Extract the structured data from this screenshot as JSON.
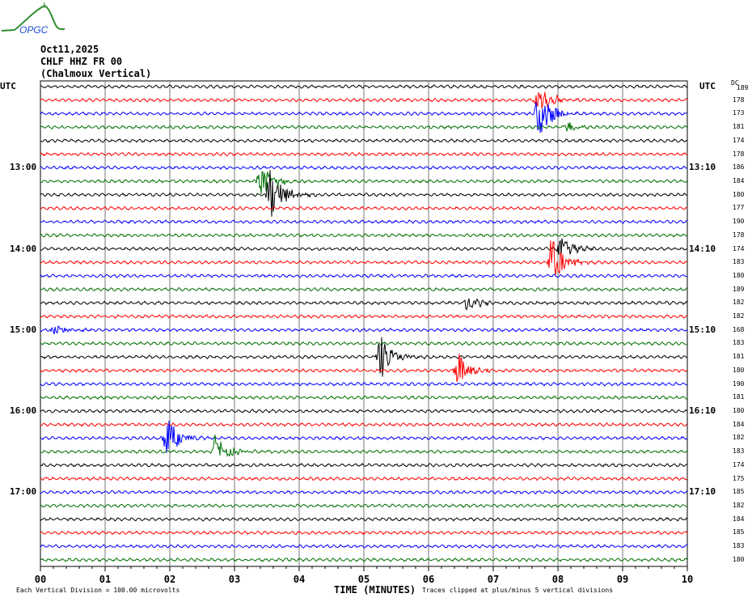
{
  "logo": {
    "text": "OPGC",
    "colors": {
      "curve": "#2e8b2e",
      "text": "#1a4fd0"
    }
  },
  "header": {
    "date": "Oct11,2025",
    "station": "CHLF HHZ FR 00",
    "name": "(Chalmoux Vertical)"
  },
  "chart_data": {
    "type": "line",
    "title": "",
    "left_axis_title": "UTC",
    "right_axis_title": "UTC",
    "dc_title": "DC",
    "xlabel": "TIME (MINUTES)",
    "xlim": [
      0,
      10
    ],
    "x_ticks": [
      "00",
      "01",
      "02",
      "03",
      "04",
      "05",
      "06",
      "07",
      "08",
      "09",
      "10"
    ],
    "trace_colors": [
      "#000000",
      "#ff0000",
      "#0000ff",
      "#007000"
    ],
    "trace_count": 36,
    "minutes_per_trace": 10,
    "left_labels": [
      {
        "trace": 6,
        "text": "13:00"
      },
      {
        "trace": 12,
        "text": "14:00"
      },
      {
        "trace": 18,
        "text": "15:00"
      },
      {
        "trace": 24,
        "text": "16:00"
      },
      {
        "trace": 30,
        "text": "17:00"
      }
    ],
    "right_labels": [
      {
        "trace": 6,
        "text": "13:10"
      },
      {
        "trace": 12,
        "text": "14:10"
      },
      {
        "trace": 18,
        "text": "15:10"
      },
      {
        "trace": 24,
        "text": "16:10"
      },
      {
        "trace": 30,
        "text": "17:10"
      }
    ],
    "dc_values": [
      189,
      178,
      173,
      181,
      174,
      178,
      186,
      184,
      180,
      177,
      190,
      178,
      174,
      183,
      180,
      189,
      182,
      182,
      168,
      183,
      181,
      180,
      190,
      181,
      180,
      184,
      182,
      183,
      174,
      175,
      185,
      182,
      184,
      185,
      183,
      180
    ],
    "events": [
      {
        "trace": 1,
        "minute": 7.7,
        "amplitude": 1.2
      },
      {
        "trace": 2,
        "minute": 7.7,
        "amplitude": 2.0
      },
      {
        "trace": 3,
        "minute": 8.15,
        "amplitude": 0.35
      },
      {
        "trace": 7,
        "minute": 3.4,
        "amplitude": 1.3
      },
      {
        "trace": 8,
        "minute": 3.55,
        "amplitude": 2.2
      },
      {
        "trace": 12,
        "minute": 8.05,
        "amplitude": 1.2
      },
      {
        "trace": 13,
        "minute": 7.9,
        "amplitude": 2.0
      },
      {
        "trace": 16,
        "minute": 6.6,
        "amplitude": 0.6
      },
      {
        "trace": 18,
        "minute": 0.2,
        "amplitude": 0.5
      },
      {
        "trace": 20,
        "minute": 5.25,
        "amplitude": 1.8
      },
      {
        "trace": 21,
        "minute": 6.45,
        "amplitude": 1.4
      },
      {
        "trace": 26,
        "minute": 1.95,
        "amplitude": 1.6
      },
      {
        "trace": 27,
        "minute": 2.7,
        "amplitude": 1.2
      }
    ],
    "footnote_left": "Each Vertical Division =  100.00 microvolts",
    "footnote_right": "Traces clipped at plus/minus 5 vertical divisions",
    "grid": true
  }
}
